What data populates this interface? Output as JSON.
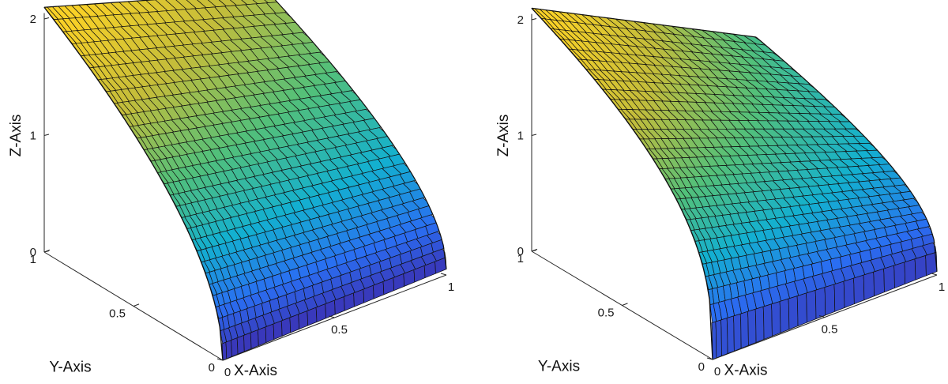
{
  "chart_data": [
    {
      "type": "surface",
      "panel": "left",
      "xlabel": "X-Axis",
      "ylabel": "Y-Axis",
      "zlabel": "Z-Axis",
      "xlim": [
        0,
        1
      ],
      "ylim": [
        0,
        1
      ],
      "zlim": [
        0,
        2
      ],
      "xticks": [
        "0",
        "0.5",
        "1"
      ],
      "yticks": [
        "0",
        "0.5",
        "1"
      ],
      "zticks": [
        "0",
        "1",
        "2"
      ],
      "exponent": 0.5,
      "corner_values": {
        "x0_y0": 0,
        "x1_y0": 0.05,
        "x0_y1": 2.1,
        "x1_y1": 1.5
      },
      "colormap": [
        "#3e26a8",
        "#2a6ef2",
        "#13b0d0",
        "#52c07a",
        "#c4bd3a",
        "#f9d127"
      ],
      "mesh": "polygonal (hexagonal-like) cells, refined near origin"
    },
    {
      "type": "surface",
      "panel": "right",
      "xlabel": "X-Axis",
      "ylabel": "Y-Axis",
      "zlabel": "Z-Axis",
      "xlim": [
        0,
        1
      ],
      "ylim": [
        0,
        1
      ],
      "zlim": [
        0,
        2
      ],
      "xticks": [
        "0",
        "0.5",
        "1"
      ],
      "yticks": [
        "0",
        "0.5",
        "1"
      ],
      "zticks": [
        "0",
        "1",
        "2"
      ],
      "exponent": 0.35,
      "corner_values": {
        "x0_y0": 0,
        "x1_y0": 0.03,
        "x0_y1": 2.1,
        "x1_y1": 1.12
      },
      "colormap": [
        "#3e26a8",
        "#2a6ef2",
        "#13b0d0",
        "#52c07a",
        "#c4bd3a",
        "#f9d127"
      ],
      "mesh": "polygonal (hexagonal-like) cells, refined near origin"
    }
  ]
}
